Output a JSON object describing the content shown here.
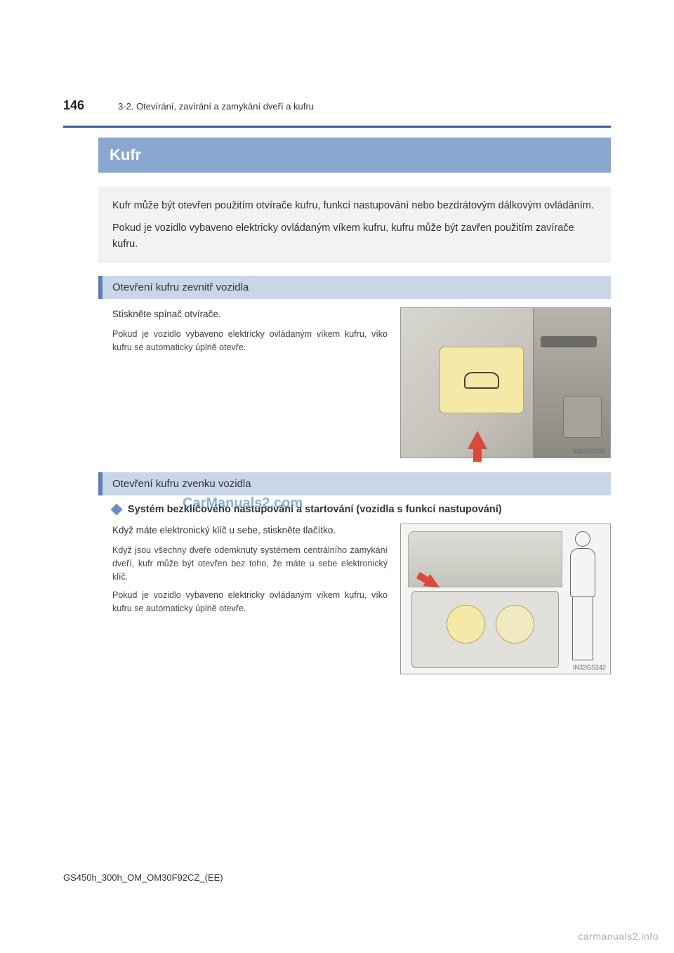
{
  "page_number": "146",
  "breadcrumb": "3-2. Otevírání, zavírání a zamykání dveří a kufru",
  "title": "Kufr",
  "intro_p1": "Kufr může být otevřen použitím otvírače kufru, funkcí nastupování nebo bezdrátovým dálkovým ovládáním.",
  "intro_p2": "Pokud je vozidlo vybaveno elektricky ovládaným víkem kufru, kufru může být zavřen použitím zavírače kufru.",
  "section1": {
    "heading": "Otevření kufru zevnitř vozidla",
    "main": "Stiskněte spínač otvírače.",
    "sub": "Pokud je vozidlo vybaveno elektricky ovládaným víkem kufru, víko kufru se automaticky úplně otevře.",
    "img_label": "IN32GS191"
  },
  "section2": {
    "heading": "Otevření kufru zvenku vozidla",
    "bullet": "Systém bezklíčového nastupování a startování (vozidla s funkcí nastupování)",
    "main": "Když máte elektronický klíč u sebe, stiskněte tlačítko.",
    "sub1": "Když jsou všechny dveře odemknuty systémem centrálního zamykání dveří, kufr může být otevřen bez toho, že máte u sebe elektronický klíč.",
    "sub2": "Pokud je vozidlo vybaveno elektricky ovládaným víkem kufru, víko kufru se automaticky úplně otevře.",
    "img_label": "IN32GS242"
  },
  "footer": "GS450h_300h_OM_OM30F92CZ_(EE)",
  "watermark_bottom": "carmanuals2.info",
  "watermark_center": "CarManuals2.com",
  "colors": {
    "divider": "#2e5fa3",
    "title_bg": "#8aa7cf",
    "subsection_bg": "#c9d6e8",
    "subsection_border": "#5a7fb5",
    "intro_bg": "#f2f2f2",
    "diamond": "#6a8cc5",
    "arrow": "#d84a3a",
    "button_yellow": "#f5e9a8"
  }
}
